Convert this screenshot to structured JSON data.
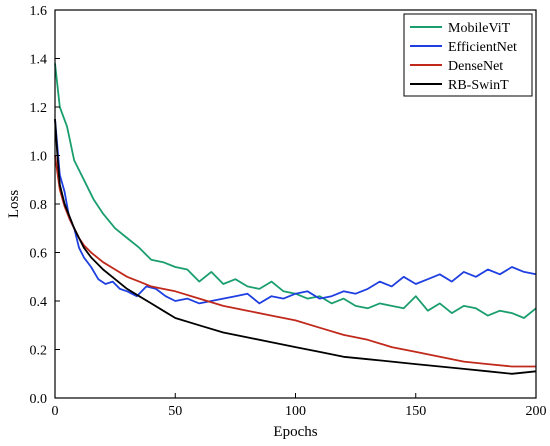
{
  "chart_data": {
    "type": "line",
    "xlabel": "Epochs",
    "ylabel": "Loss",
    "xlim": [
      0,
      200
    ],
    "ylim": [
      0,
      1.6
    ],
    "xticks": [
      "0",
      "50",
      "100",
      "150",
      "200"
    ],
    "yticks": [
      "0.0",
      "0.2",
      "0.4",
      "0.6",
      "0.8",
      "1.0",
      "1.2",
      "1.4",
      "1.6"
    ],
    "grid": false,
    "legend_position": "top-right",
    "series": [
      {
        "name": "MobileViT",
        "color": "#1a9e6e",
        "x": [
          0,
          2,
          5,
          8,
          12,
          16,
          20,
          25,
          30,
          35,
          40,
          45,
          50,
          55,
          60,
          65,
          70,
          75,
          80,
          85,
          90,
          95,
          100,
          105,
          110,
          115,
          120,
          125,
          130,
          135,
          140,
          145,
          150,
          155,
          160,
          165,
          170,
          175,
          180,
          185,
          190,
          195,
          200
        ],
        "y": [
          1.38,
          1.2,
          1.12,
          0.98,
          0.9,
          0.82,
          0.76,
          0.7,
          0.66,
          0.62,
          0.57,
          0.56,
          0.54,
          0.53,
          0.48,
          0.52,
          0.47,
          0.49,
          0.46,
          0.45,
          0.48,
          0.44,
          0.43,
          0.41,
          0.42,
          0.39,
          0.41,
          0.38,
          0.37,
          0.39,
          0.38,
          0.37,
          0.42,
          0.36,
          0.39,
          0.35,
          0.38,
          0.37,
          0.34,
          0.36,
          0.35,
          0.33,
          0.37
        ]
      },
      {
        "name": "EfficientNet",
        "color": "#1f3fe0",
        "x": [
          0,
          2,
          4,
          6,
          8,
          10,
          12,
          15,
          18,
          21,
          24,
          27,
          30,
          34,
          38,
          42,
          46,
          50,
          55,
          60,
          65,
          70,
          75,
          80,
          85,
          90,
          95,
          100,
          105,
          110,
          115,
          120,
          125,
          130,
          135,
          140,
          145,
          150,
          155,
          160,
          165,
          170,
          175,
          180,
          185,
          190,
          195,
          200
        ],
        "y": [
          1.15,
          0.92,
          0.85,
          0.74,
          0.7,
          0.62,
          0.58,
          0.54,
          0.49,
          0.47,
          0.48,
          0.45,
          0.44,
          0.42,
          0.46,
          0.45,
          0.42,
          0.4,
          0.41,
          0.39,
          0.4,
          0.41,
          0.42,
          0.43,
          0.39,
          0.42,
          0.41,
          0.43,
          0.44,
          0.41,
          0.42,
          0.44,
          0.43,
          0.45,
          0.48,
          0.46,
          0.5,
          0.47,
          0.49,
          0.51,
          0.48,
          0.52,
          0.5,
          0.53,
          0.51,
          0.54,
          0.52,
          0.51
        ]
      },
      {
        "name": "DenseNet",
        "color": "#c0291b",
        "x": [
          0,
          2,
          4,
          6,
          8,
          10,
          12,
          15,
          20,
          25,
          30,
          35,
          40,
          45,
          50,
          60,
          70,
          80,
          90,
          100,
          110,
          120,
          130,
          140,
          150,
          160,
          170,
          180,
          190,
          200
        ],
        "y": [
          1.0,
          0.86,
          0.79,
          0.74,
          0.7,
          0.66,
          0.63,
          0.6,
          0.56,
          0.53,
          0.5,
          0.48,
          0.46,
          0.45,
          0.44,
          0.41,
          0.38,
          0.36,
          0.34,
          0.32,
          0.29,
          0.26,
          0.24,
          0.21,
          0.19,
          0.17,
          0.15,
          0.14,
          0.13,
          0.13
        ]
      },
      {
        "name": "RB-SwinT",
        "color": "#000000",
        "x": [
          0,
          1,
          2,
          4,
          6,
          8,
          10,
          12,
          15,
          20,
          25,
          30,
          35,
          40,
          45,
          50,
          60,
          70,
          80,
          90,
          100,
          110,
          120,
          130,
          140,
          150,
          160,
          170,
          180,
          190,
          200
        ],
        "y": [
          1.15,
          1.0,
          0.88,
          0.8,
          0.75,
          0.7,
          0.66,
          0.62,
          0.58,
          0.53,
          0.49,
          0.45,
          0.42,
          0.39,
          0.36,
          0.33,
          0.3,
          0.27,
          0.25,
          0.23,
          0.21,
          0.19,
          0.17,
          0.16,
          0.15,
          0.14,
          0.13,
          0.12,
          0.11,
          0.1,
          0.11
        ]
      }
    ]
  }
}
